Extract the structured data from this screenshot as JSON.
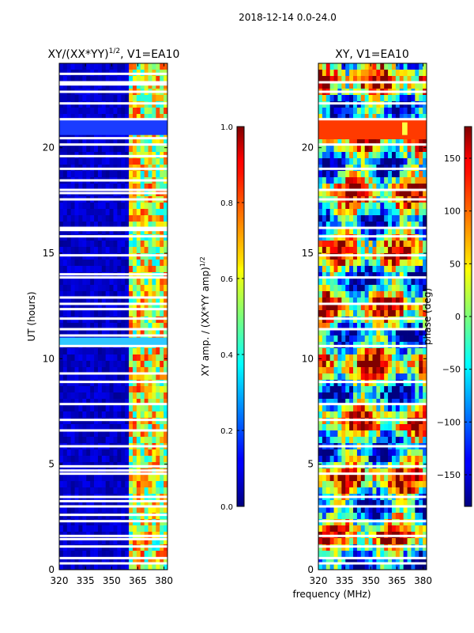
{
  "suptitle": "2018-12-14 0.0-24.0",
  "xlabel_shared": "frequency (MHz)",
  "chart_data": [
    {
      "type": "heatmap",
      "title": "XY/(XX*YY)",
      "title_sup": "1/2",
      "title_suffix": ", V1=EA10",
      "xlabel": "",
      "ylabel": "UT (hours)",
      "xlim": [
        320,
        382
      ],
      "ylim": [
        0,
        24
      ],
      "xticks": [
        320,
        335,
        350,
        365,
        380
      ],
      "yticks": [
        0,
        5,
        10,
        15,
        20
      ],
      "colorbar": {
        "label": "XY amp. / (XX*YY amp)",
        "label_sup": "1/2",
        "range": [
          0.0,
          1.0
        ],
        "ticks": [
          "0.0",
          "0.2",
          "0.4",
          "0.6",
          "0.8",
          "1.0"
        ],
        "tick_values": [
          0.0,
          0.2,
          0.4,
          0.6,
          0.8,
          1.0
        ],
        "colormap": "jet"
      },
      "flagged_hours": [
        0.3,
        0.55,
        1.1,
        1.45,
        1.6,
        2.3,
        2.6,
        3.0,
        3.25,
        3.45,
        4.55,
        4.7,
        4.9,
        5.85,
        6.6,
        7.1,
        7.85,
        8.9,
        9.3,
        10.6,
        11.1,
        11.4,
        11.9,
        12.35,
        12.6,
        12.9,
        13.85,
        14.0,
        14.9,
        15.8,
        16.1,
        16.2,
        17.55,
        17.85,
        18.0,
        18.45,
        19.0,
        19.6,
        20.15,
        20.45,
        21.35,
        22.1,
        22.65,
        23.0,
        23.1,
        23.5
      ]
    },
    {
      "type": "heatmap",
      "title": "XY, V1=EA10",
      "xlabel": "frequency (MHz)",
      "ylabel": "",
      "xlim": [
        320,
        382
      ],
      "ylim": [
        0,
        24
      ],
      "xticks": [
        320,
        335,
        350,
        365,
        380
      ],
      "yticks": [
        0,
        5,
        10,
        15,
        20
      ],
      "colorbar": {
        "label": "phase (deg)",
        "range": [
          -180,
          180
        ],
        "ticks": [
          "−150",
          "−100",
          "−50",
          "0",
          "50",
          "100",
          "150"
        ],
        "tick_values": [
          -150,
          -100,
          -50,
          0,
          50,
          100,
          150
        ],
        "colormap": "jet"
      },
      "flagged_hours": [
        0.3,
        0.55,
        1.1,
        1.6,
        2.3,
        3.0,
        3.45,
        4.55,
        4.9,
        5.85,
        7.1,
        7.85,
        8.9,
        10.6,
        11.4,
        11.9,
        12.6,
        13.85,
        14.9,
        15.8,
        16.2,
        17.55,
        18.0,
        19.0,
        20.15,
        21.35,
        22.1,
        22.65,
        23.1
      ]
    }
  ]
}
